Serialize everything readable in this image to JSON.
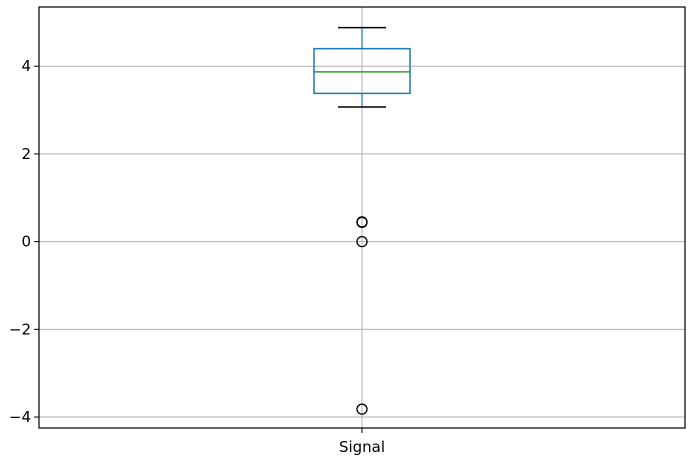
{
  "chart_data": {
    "type": "box",
    "categories": [
      "Signal"
    ],
    "boxes": [
      {
        "name": "Signal",
        "whisker_low": 3.07,
        "q1": 3.38,
        "median": 3.87,
        "q3": 4.4,
        "whisker_high": 4.88,
        "outliers": [
          0.45,
          0.44,
          0.0,
          -3.82
        ]
      }
    ],
    "yticks": [
      -4,
      -2,
      0,
      2,
      4
    ],
    "ytick_labels": [
      "−4",
      "−2",
      "0",
      "2",
      "4"
    ],
    "ylim": [
      -4.25,
      5.35
    ],
    "grid": true,
    "colors": {
      "box": "#1f77b4",
      "median": "#2ca02c",
      "whisker": "#000000",
      "grid": "#b0b0b0",
      "outlier": "#000000"
    }
  }
}
